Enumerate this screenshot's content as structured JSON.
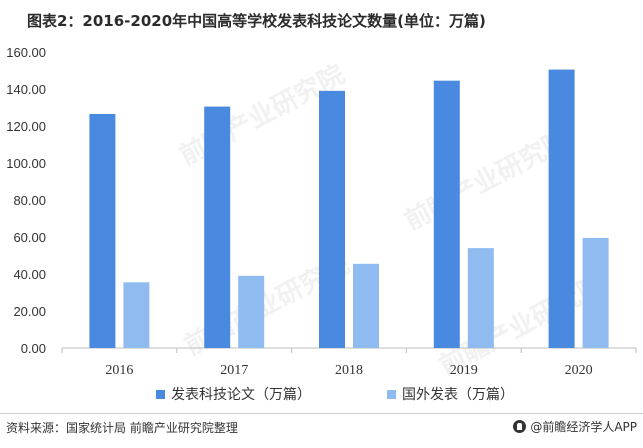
{
  "title": "图表2：2016-2020年中国高等学校发表科技论文数量(单位：万篇)",
  "chart_data": {
    "type": "bar",
    "categories": [
      "2016",
      "2017",
      "2018",
      "2019",
      "2020"
    ],
    "series": [
      {
        "name": "发表科技论文（万篇）",
        "color": "#4a89e0",
        "values": [
          126.5,
          130.5,
          139.0,
          144.5,
          150.5
        ]
      },
      {
        "name": "国外发表（万篇）",
        "color": "#8fbbf0",
        "values": [
          35.5,
          39.0,
          45.5,
          54.0,
          59.5
        ]
      }
    ],
    "ylim": [
      0,
      160
    ],
    "yticks": [
      "0.00",
      "20.00",
      "40.00",
      "60.00",
      "80.00",
      "100.00",
      "120.00",
      "140.00",
      "160.00"
    ],
    "grid": false,
    "legend_position": "bottom",
    "xlabel": "",
    "ylabel": ""
  },
  "footer": {
    "source": "资料来源：国家统计局 前瞻产业研究院整理",
    "brand": "@前瞻经济学人APP"
  },
  "watermark": {
    "text": "前瞻产业研究院"
  }
}
